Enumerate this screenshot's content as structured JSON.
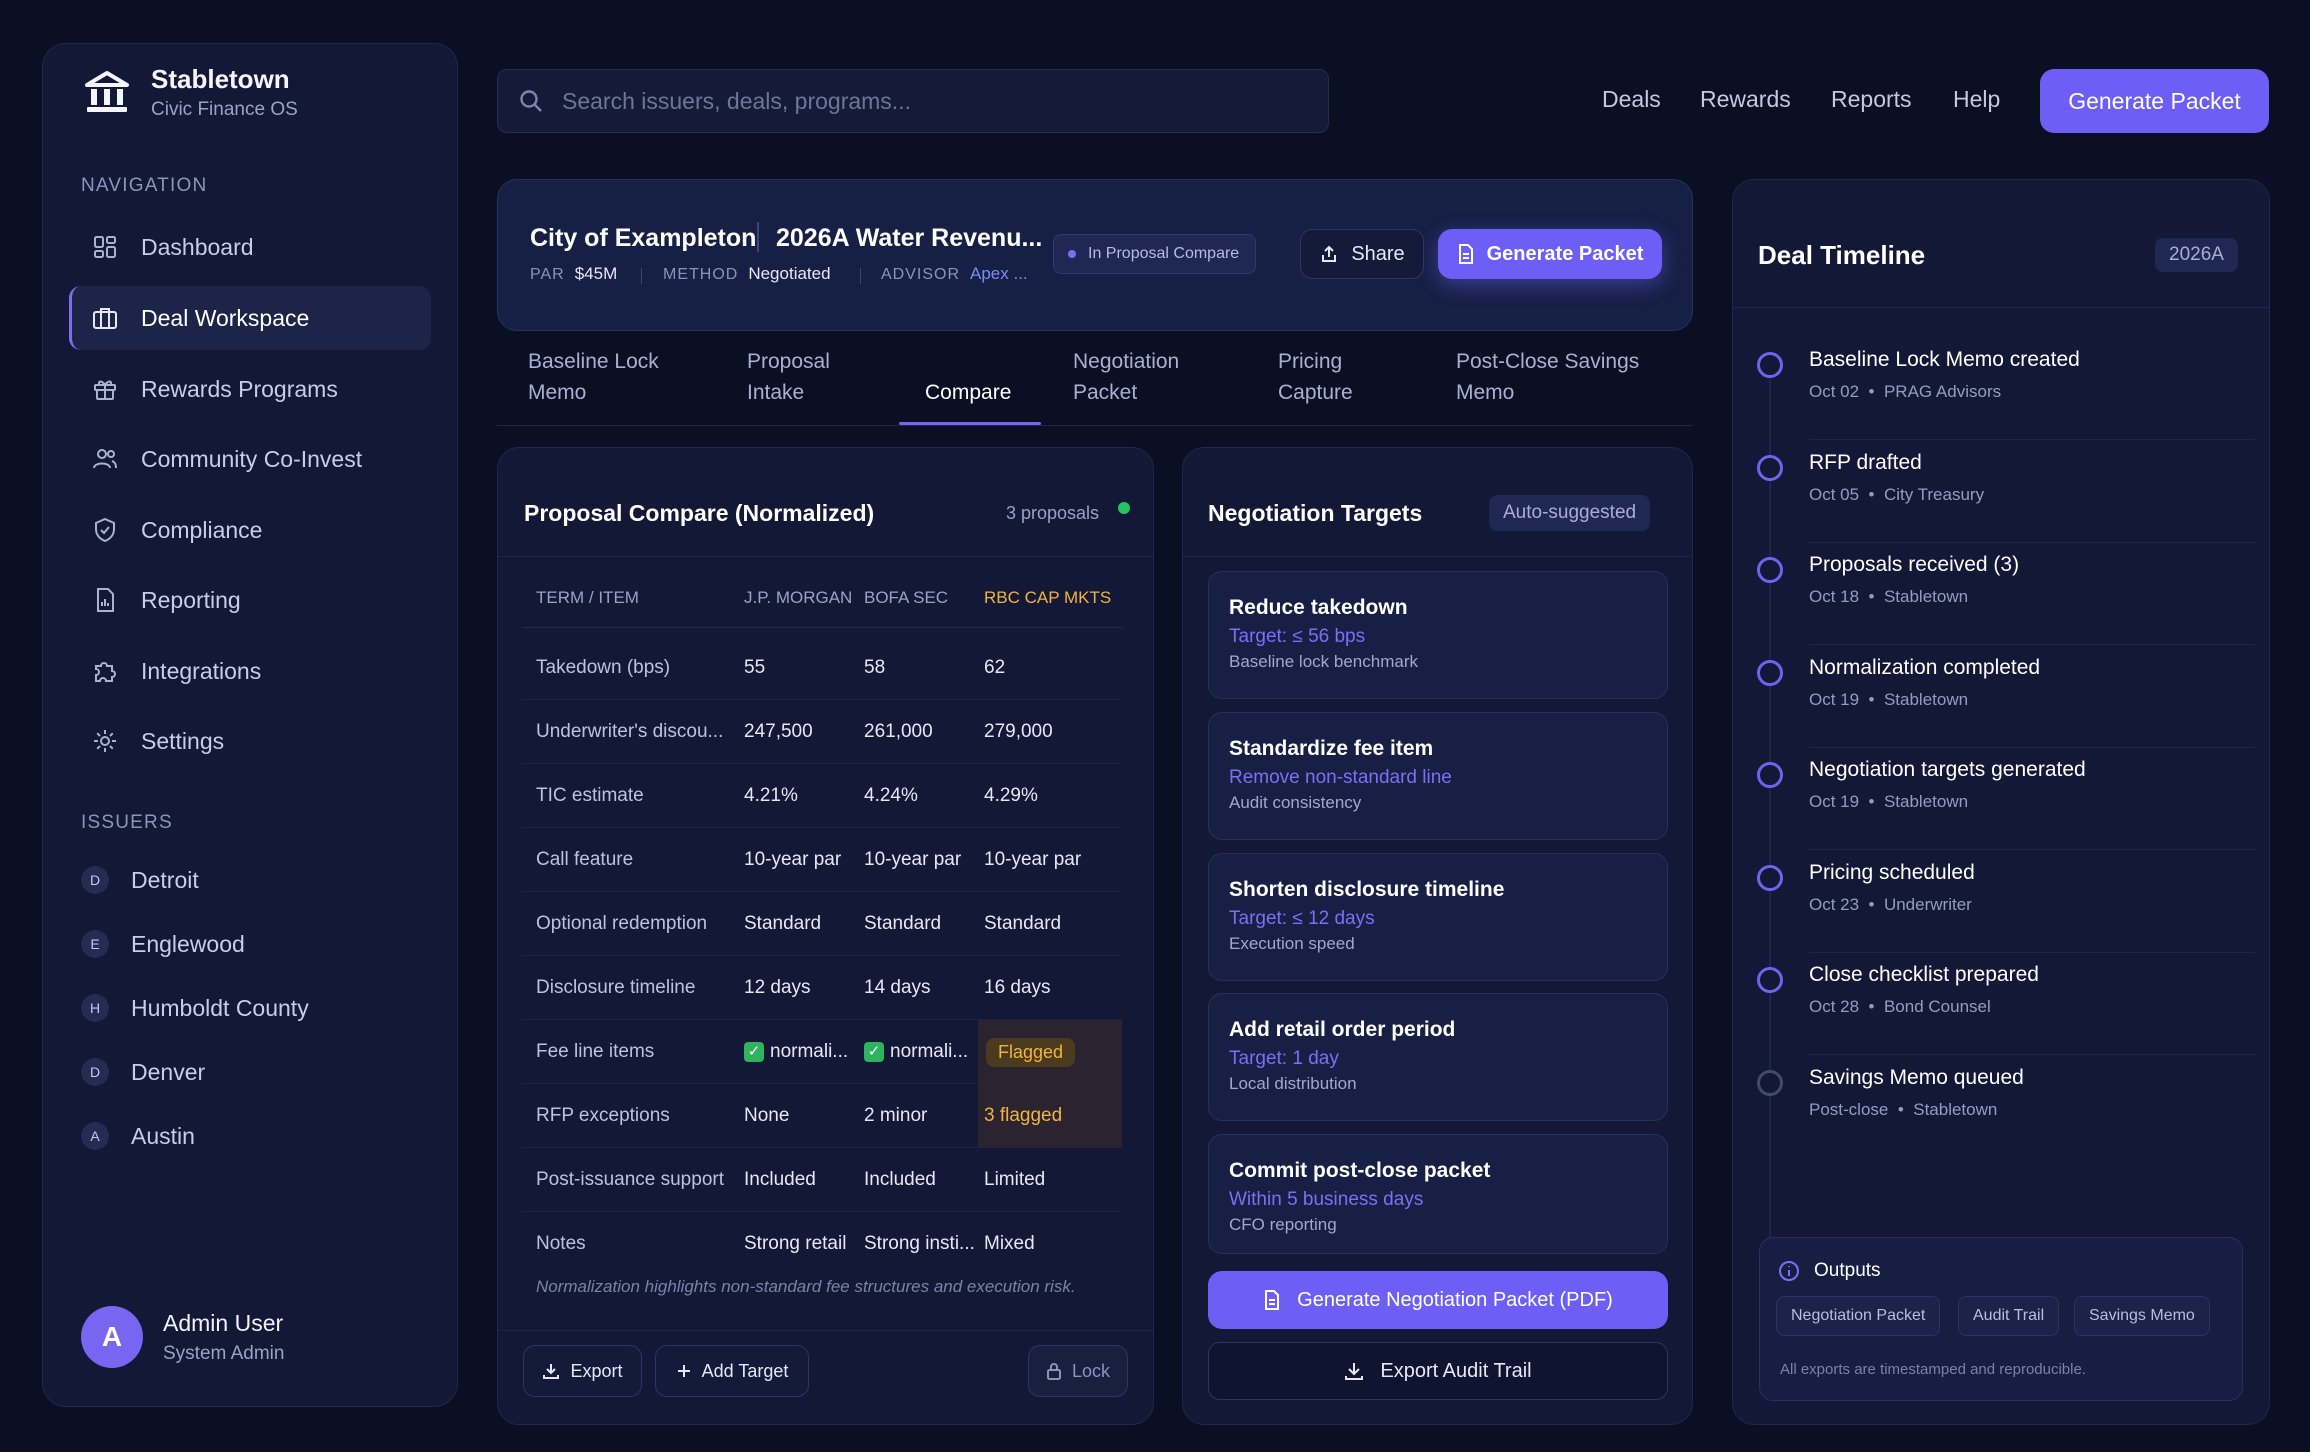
{
  "brand": {
    "name": "Stabletown",
    "subtitle": "Civic Finance OS"
  },
  "sidebar": {
    "nav_heading": "NAVIGATION",
    "nav_items": [
      {
        "label": "Dashboard",
        "icon": "dashboard-icon"
      },
      {
        "label": "Deal Workspace",
        "icon": "briefcase-icon",
        "active": true
      },
      {
        "label": "Rewards Programs",
        "icon": "gift-icon"
      },
      {
        "label": "Community Co-Invest",
        "icon": "users-icon"
      },
      {
        "label": "Compliance",
        "icon": "shield-check-icon"
      },
      {
        "label": "Reporting",
        "icon": "report-icon"
      },
      {
        "label": "Integrations",
        "icon": "puzzle-icon"
      },
      {
        "label": "Settings",
        "icon": "gear-icon"
      }
    ],
    "issuers_heading": "ISSUERS",
    "issuers": [
      {
        "initial": "D",
        "name": "Detroit"
      },
      {
        "initial": "E",
        "name": "Englewood"
      },
      {
        "initial": "H",
        "name": "Humboldt County"
      },
      {
        "initial": "D",
        "name": "Denver"
      },
      {
        "initial": "A",
        "name": "Austin"
      }
    ],
    "user": {
      "initial": "A",
      "name": "Admin User",
      "role": "System Admin"
    }
  },
  "topbar": {
    "search_placeholder": "Search issuers, deals, programs...",
    "links": [
      "Deals",
      "Rewards",
      "Reports",
      "Help"
    ],
    "generate_label": "Generate Packet"
  },
  "deal": {
    "issuer": "City of Exampleton",
    "title": "2026A Water Revenu...",
    "par_label": "PAR",
    "par_value": "$45M",
    "method_label": "METHOD",
    "method_value": "Negotiated",
    "advisor_label": "ADVISOR",
    "advisor_value": "Apex ...",
    "status": "In Proposal Compare",
    "share_label": "Share",
    "generate_label": "Generate Packet"
  },
  "tabs": [
    {
      "line1": "Baseline Lock",
      "line2": "Memo"
    },
    {
      "line1": "Proposal",
      "line2": "Intake"
    },
    {
      "line1": "Compare",
      "line2": "",
      "active": true
    },
    {
      "line1": "Negotiation",
      "line2": "Packet"
    },
    {
      "line1": "Pricing",
      "line2": "Capture"
    },
    {
      "line1": "Post-Close Savings",
      "line2": "Memo"
    }
  ],
  "compare": {
    "title": "Proposal Compare (Normalized)",
    "count": "3 proposals",
    "status_color": "#22c55e",
    "headers": [
      "TERM / ITEM",
      "J.P. MORGAN",
      "BOFA SEC",
      "RBC CAP MKTS"
    ],
    "rows": [
      {
        "label": "Takedown (bps)",
        "c1": "55",
        "c2": "58",
        "c3": "62"
      },
      {
        "label": "Underwriter's discou...",
        "c1": "247,500",
        "c2": "261,000",
        "c3": "279,000"
      },
      {
        "label": "TIC estimate",
        "c1": "4.21%",
        "c2": "4.24%",
        "c3": "4.29%"
      },
      {
        "label": "Call feature",
        "c1": "10-year par",
        "c2": "10-year par",
        "c3": "10-year par"
      },
      {
        "label": "Optional redemption",
        "c1": "Standard",
        "c2": "Standard",
        "c3": "Standard"
      },
      {
        "label": "Disclosure timeline",
        "c1": "12 days",
        "c2": "14 days",
        "c3": "16 days"
      },
      {
        "label": "Fee line items",
        "c1": "normali...",
        "c2": "normali...",
        "c3": "Flagged"
      },
      {
        "label": "RFP exceptions",
        "c1": "None",
        "c2": "2 minor",
        "c3": "3 flagged"
      },
      {
        "label": "Post-issuance support",
        "c1": "Included",
        "c2": "Included",
        "c3": "Limited"
      },
      {
        "label": "Notes",
        "c1": "Strong retail",
        "c2": "Strong insti...",
        "c3": "Mixed"
      }
    ],
    "note": "Normalization highlights non-standard fee structures and execution risk.",
    "export_label": "Export",
    "add_target_label": "Add Target",
    "lock_label": "Lock"
  },
  "targets": {
    "title": "Negotiation Targets",
    "badge": "Auto-suggested",
    "items": [
      {
        "title": "Reduce takedown",
        "target": "Target: ≤ 56 bps",
        "note": "Baseline lock benchmark"
      },
      {
        "title": "Standardize fee item",
        "target": "Remove non-standard line",
        "note": "Audit consistency"
      },
      {
        "title": "Shorten disclosure timeline",
        "target": "Target: ≤ 12 days",
        "note": "Execution speed"
      },
      {
        "title": "Add retail order period",
        "target": "Target: 1 day",
        "note": "Local distribution"
      },
      {
        "title": "Commit post-close packet",
        "target": "Within 5 business days",
        "note": "CFO reporting"
      }
    ],
    "generate_label": "Generate Negotiation Packet (PDF)",
    "export_label": "Export Audit Trail"
  },
  "timeline": {
    "title": "Deal Timeline",
    "badge": "2026A",
    "items": [
      {
        "title": "Baseline Lock Memo created",
        "date": "Oct 02",
        "by": "PRAG Advisors"
      },
      {
        "title": "RFP drafted",
        "date": "Oct 05",
        "by": "City Treasury"
      },
      {
        "title": "Proposals received (3)",
        "date": "Oct 18",
        "by": "Stabletown"
      },
      {
        "title": "Normalization completed",
        "date": "Oct 19",
        "by": "Stabletown"
      },
      {
        "title": "Negotiation targets generated",
        "date": "Oct 19",
        "by": "Stabletown"
      },
      {
        "title": "Pricing scheduled",
        "date": "Oct 23",
        "by": "Underwriter"
      },
      {
        "title": "Close checklist prepared",
        "date": "Oct 28",
        "by": "Bond Counsel"
      },
      {
        "title": "Savings Memo queued",
        "date": "Post-close",
        "by": "Stabletown",
        "pending": true
      }
    ],
    "outputs_title": "Outputs",
    "outputs": [
      "Negotiation Packet",
      "Audit Trail",
      "Savings Memo"
    ],
    "outputs_note": "All exports are timestamped and reproducible."
  },
  "colors": {
    "accent": "#6d5ef5",
    "flag": "#f2b440",
    "background": "#0b0f24"
  }
}
